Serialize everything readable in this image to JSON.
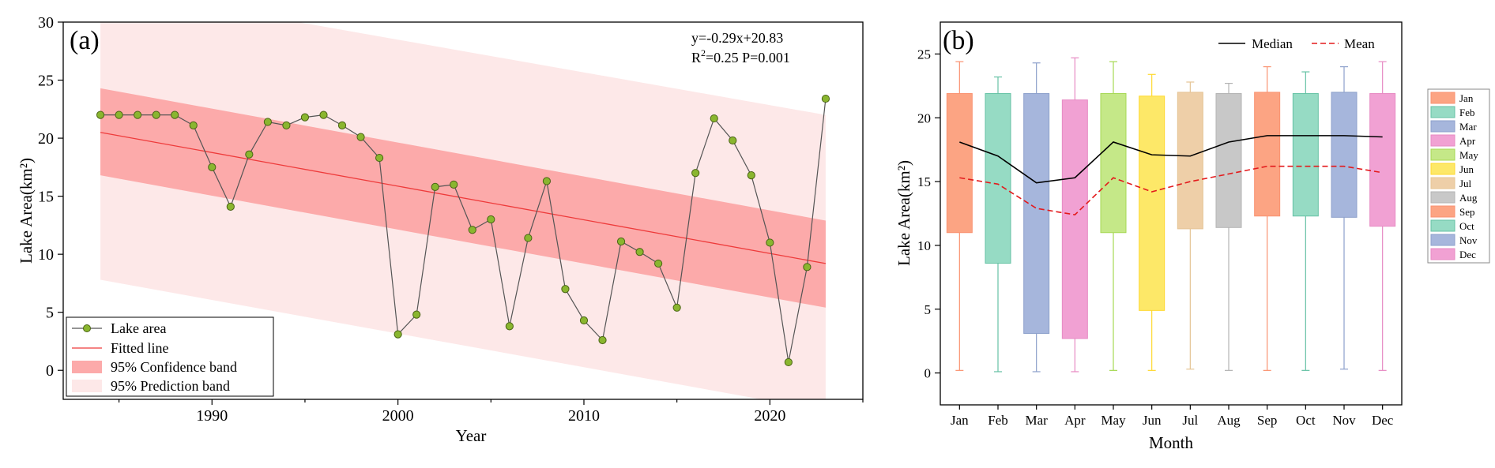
{
  "chart_data": [
    {
      "panel_label": "(a)",
      "type": "line",
      "xlabel": "Year",
      "ylabel": "Lake Area(km²)",
      "xlim": [
        1982,
        2025
      ],
      "ylim": [
        -2.5,
        30
      ],
      "xticks": [
        1990,
        2000,
        2010,
        2020
      ],
      "yticks": [
        0,
        5,
        10,
        15,
        20,
        25,
        30
      ],
      "grid": false,
      "equation": "y=-0.29x+20.83",
      "stats": "R²=0.25 P=0.001",
      "legend_position": "bottom-left",
      "legend": [
        "Lake area",
        "Fitted line",
        "95% Confidence band",
        "95% Prediction band"
      ],
      "series": [
        {
          "name": "Lake area",
          "x": [
            1984,
            1985,
            1986,
            1987,
            1988,
            1989,
            1990,
            1991,
            1992,
            1993,
            1994,
            1995,
            1996,
            1997,
            1998,
            1999,
            2000,
            2001,
            2002,
            2003,
            2004,
            2005,
            2006,
            2007,
            2008,
            2009,
            2010,
            2011,
            2012,
            2013,
            2014,
            2015,
            2016,
            2017,
            2018,
            2019,
            2020,
            2021,
            2022,
            2023
          ],
          "y": [
            22,
            22,
            22,
            22,
            22,
            21.1,
            17.5,
            14.1,
            18.6,
            21.4,
            21.1,
            21.8,
            22,
            21.1,
            20.1,
            18.3,
            3.1,
            4.8,
            15.8,
            16,
            12.1,
            13,
            3.8,
            11.4,
            16.3,
            7,
            4.3,
            2.6,
            11.1,
            10.2,
            9.2,
            5.4,
            17,
            21.7,
            19.8,
            16.8,
            11,
            0.7,
            8.9,
            23.4
          ]
        },
        {
          "name": "Fitted line",
          "x": [
            1984,
            2023
          ],
          "y": [
            20.5,
            9.2
          ]
        }
      ],
      "confidence_band": {
        "x": [
          1984,
          2023
        ],
        "upper": [
          24.3,
          12.9
        ],
        "lower": [
          16.8,
          5.4
        ]
      },
      "prediction_band": {
        "x": [
          1984,
          2023
        ],
        "upper": [
          33,
          22
        ],
        "lower": [
          7.8,
          -3.5
        ]
      },
      "colors": {
        "point": "#8ab62f",
        "point_edge": "#4a6414",
        "line": "#555555",
        "fit": "#ee3b3b",
        "confidence": "#fcaaaa",
        "prediction": "#fde8e8"
      }
    },
    {
      "panel_label": "(b)",
      "type": "box",
      "xlabel": "Month",
      "ylabel": "Lake Area(km²)",
      "ylim": [
        -2.5,
        27.5
      ],
      "yticks": [
        0,
        5,
        10,
        15,
        20,
        25
      ],
      "grid": false,
      "categories": [
        "Jan",
        "Feb",
        "Mar",
        "Apr",
        "May",
        "Jun",
        "Jul",
        "Aug",
        "Sep",
        "Oct",
        "Nov",
        "Dec"
      ],
      "boxes": [
        {
          "min": 0.2,
          "q1": 11.0,
          "q3": 21.9,
          "max": 24.4
        },
        {
          "min": 0.1,
          "q1": 8.6,
          "q3": 21.9,
          "max": 23.2
        },
        {
          "min": 0.1,
          "q1": 3.1,
          "q3": 21.9,
          "max": 24.3
        },
        {
          "min": 0.1,
          "q1": 2.7,
          "q3": 21.4,
          "max": 24.7
        },
        {
          "min": 0.2,
          "q1": 11.0,
          "q3": 21.9,
          "max": 24.4
        },
        {
          "min": 0.2,
          "q1": 4.9,
          "q3": 21.7,
          "max": 23.4
        },
        {
          "min": 0.3,
          "q1": 11.3,
          "q3": 22.0,
          "max": 22.8
        },
        {
          "min": 0.2,
          "q1": 11.4,
          "q3": 21.9,
          "max": 22.7
        },
        {
          "min": 0.2,
          "q1": 12.3,
          "q3": 22.0,
          "max": 24.0
        },
        {
          "min": 0.2,
          "q1": 12.3,
          "q3": 21.9,
          "max": 23.6
        },
        {
          "min": 0.3,
          "q1": 12.2,
          "q3": 22.0,
          "max": 24.0
        },
        {
          "min": 0.2,
          "q1": 11.5,
          "q3": 21.9,
          "max": 24.4
        }
      ],
      "series": [
        {
          "name": "Median",
          "values": [
            18.1,
            17.0,
            14.9,
            15.3,
            18.1,
            17.1,
            17.0,
            18.1,
            18.6,
            18.6,
            18.6,
            18.5
          ]
        },
        {
          "name": "Mean",
          "values": [
            15.3,
            14.8,
            12.9,
            12.4,
            15.3,
            14.2,
            15.0,
            15.6,
            16.2,
            16.2,
            16.2,
            15.7
          ]
        }
      ],
      "legend_position": "top-right",
      "legend": [
        "Median",
        "Mean"
      ],
      "colors": {
        "boxes": [
          "#fca483",
          "#96dbc4",
          "#a6b6dc",
          "#f1a1d3",
          "#c5e888",
          "#fde868",
          "#eecfa8",
          "#c8c8c8",
          "#fca483",
          "#96dbc4",
          "#a6b6dc",
          "#f1a1d3"
        ],
        "whiskers": [
          "#fa9270",
          "#66c2a5",
          "#8da0cb",
          "#e78ac3",
          "#a6d854",
          "#ffd92f",
          "#e5c494",
          "#b3b3b3",
          "#fa9270",
          "#66c2a5",
          "#8da0cb",
          "#e78ac3"
        ],
        "median": "#000000",
        "mean": "#e31a1c"
      }
    }
  ]
}
